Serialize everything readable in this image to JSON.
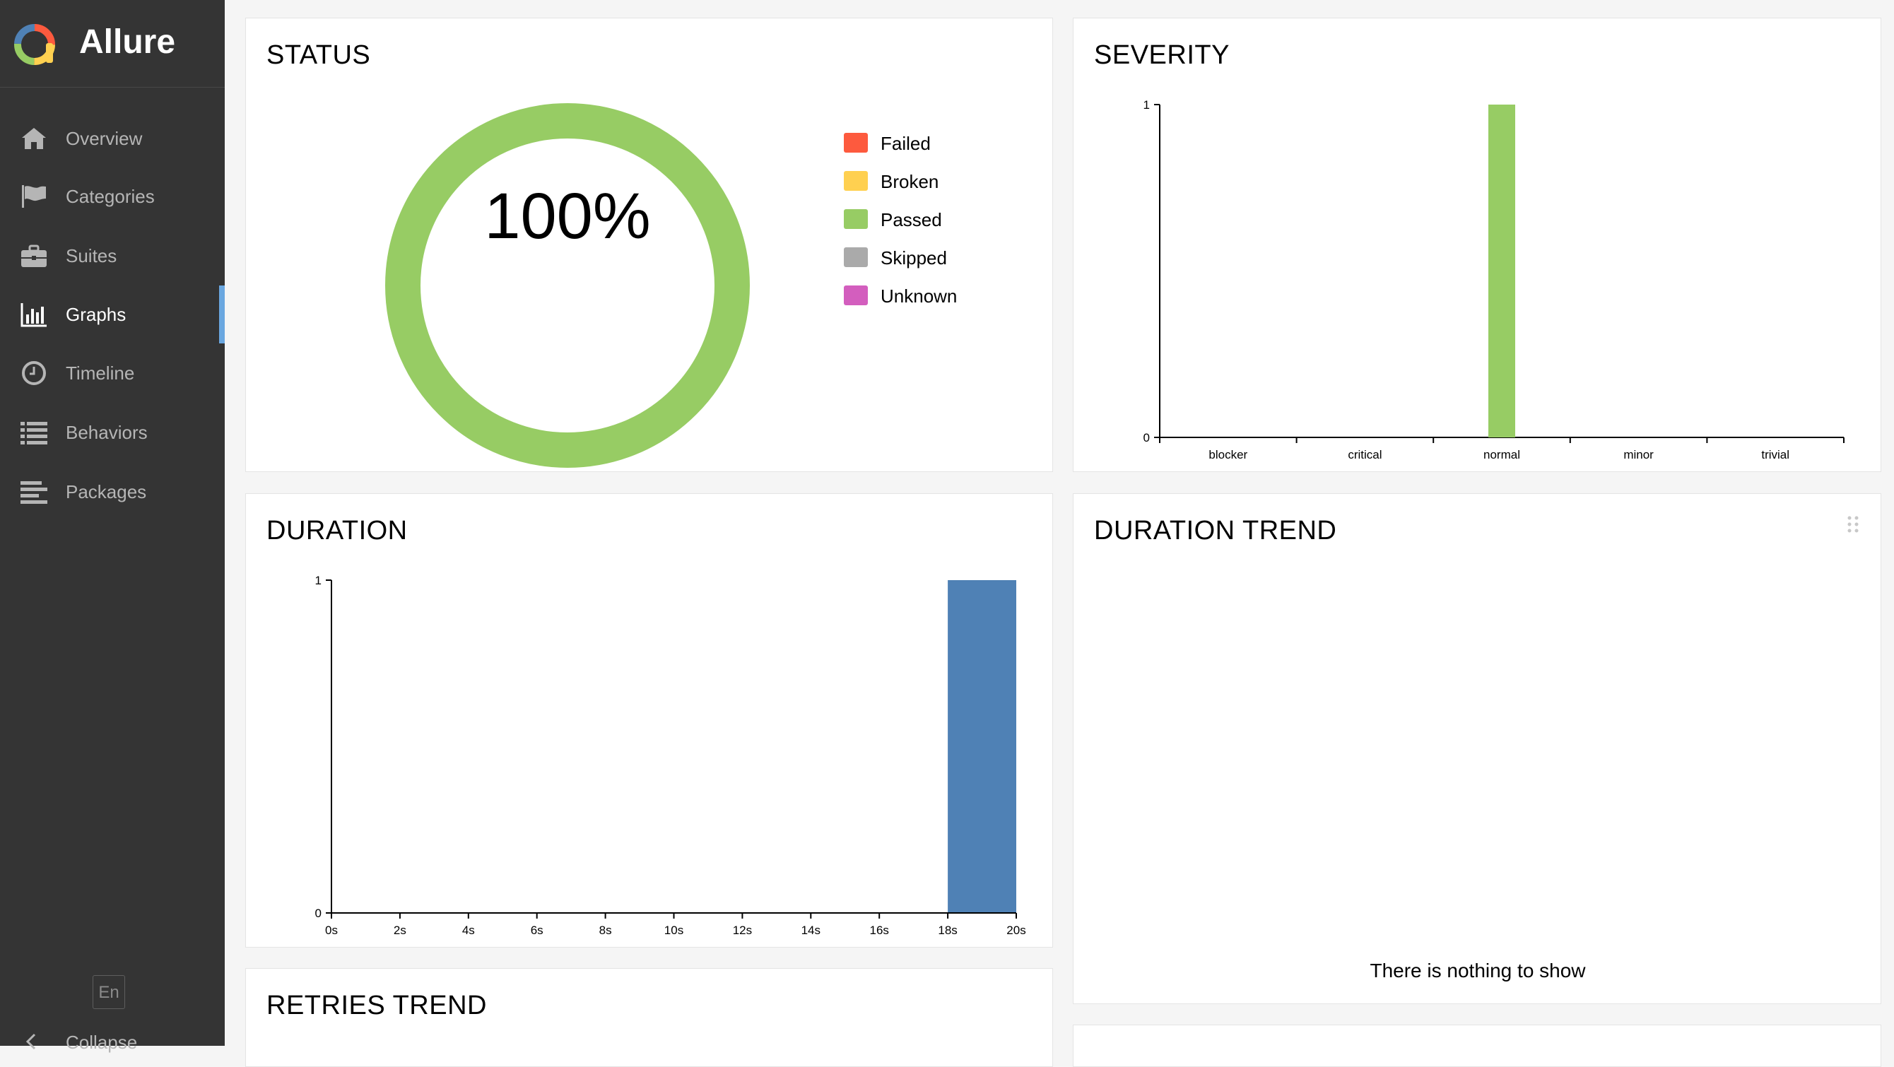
{
  "app": {
    "name": "Allure"
  },
  "sidebar": {
    "items": [
      {
        "label": "Overview",
        "icon": "home-icon"
      },
      {
        "label": "Categories",
        "icon": "flag-icon"
      },
      {
        "label": "Suites",
        "icon": "briefcase-icon"
      },
      {
        "label": "Graphs",
        "icon": "bar-chart-icon",
        "active": true
      },
      {
        "label": "Timeline",
        "icon": "clock-icon"
      },
      {
        "label": "Behaviors",
        "icon": "list-icon"
      },
      {
        "label": "Packages",
        "icon": "align-left-icon"
      }
    ],
    "language": "En",
    "collapse_label": "Collapse"
  },
  "colors": {
    "failed": "#fd5a3e",
    "broken": "#ffd050",
    "passed": "#97cc64",
    "skipped": "#aaaaaa",
    "unknown": "#d35ebe",
    "duration_bar": "#4f81b5",
    "active_accent": "#6aa7e0"
  },
  "widgets": {
    "status": {
      "title": "STATUS",
      "percent_label": "100%",
      "legend": [
        "Failed",
        "Broken",
        "Passed",
        "Skipped",
        "Unknown"
      ]
    },
    "severity": {
      "title": "SEVERITY"
    },
    "duration": {
      "title": "DURATION"
    },
    "duration_trend": {
      "title": "DURATION TREND",
      "empty_message": "There is nothing to show"
    },
    "retries_trend": {
      "title": "RETRIES TREND"
    }
  },
  "chart_data": [
    {
      "type": "pie",
      "title": "STATUS",
      "categories": [
        "Failed",
        "Broken",
        "Passed",
        "Skipped",
        "Unknown"
      ],
      "values": [
        0,
        0,
        1,
        0,
        0
      ],
      "center_label": "100%",
      "legend": "right"
    },
    {
      "type": "bar",
      "title": "SEVERITY",
      "categories": [
        "blocker",
        "critical",
        "normal",
        "minor",
        "trivial"
      ],
      "values": [
        0,
        0,
        1,
        0,
        0
      ],
      "yticks": [
        "0",
        "1"
      ],
      "ylim": [
        0,
        1
      ],
      "color": "#97cc64"
    },
    {
      "type": "bar",
      "title": "DURATION",
      "xticks": [
        "0s",
        "2s",
        "4s",
        "6s",
        "8s",
        "10s",
        "12s",
        "14s",
        "16s",
        "18s",
        "20s"
      ],
      "xlim": [
        0,
        20
      ],
      "bins": [
        {
          "from": 18,
          "to": 20,
          "value": 1
        }
      ],
      "yticks": [
        "0",
        "1"
      ],
      "ylim": [
        0,
        1
      ],
      "color": "#4f81b5"
    }
  ]
}
